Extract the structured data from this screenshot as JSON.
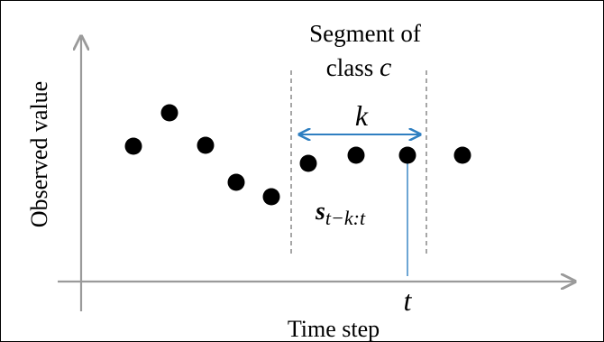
{
  "diagram": {
    "axes": {
      "x_label": "Time step",
      "y_label": "Observed value"
    },
    "segment": {
      "label_line1": "Segment of",
      "label_line2_prefix": "class ",
      "label_line2_var": "c",
      "width_label": "k",
      "subsequence_label": "s",
      "subsequence_subscript": "t−k:t"
    },
    "time_marker_label": "t",
    "observations": [
      {
        "t": 1,
        "value": 0.3
      },
      {
        "t": 2,
        "value": 0.52
      },
      {
        "t": 3,
        "value": 0.3
      },
      {
        "t": 4,
        "value": 0.02
      },
      {
        "t": 5,
        "value": -0.1
      },
      {
        "t": 6,
        "value": 0.24
      },
      {
        "t": 7,
        "value": 0.28
      },
      {
        "t": 8,
        "value": 0.28
      },
      {
        "t": 9,
        "value": 0.28
      }
    ],
    "colors": {
      "axis": "#9a9a9a",
      "points": "#000000",
      "segment_boundary": "#808080",
      "accent": "#2f7fc1"
    }
  }
}
